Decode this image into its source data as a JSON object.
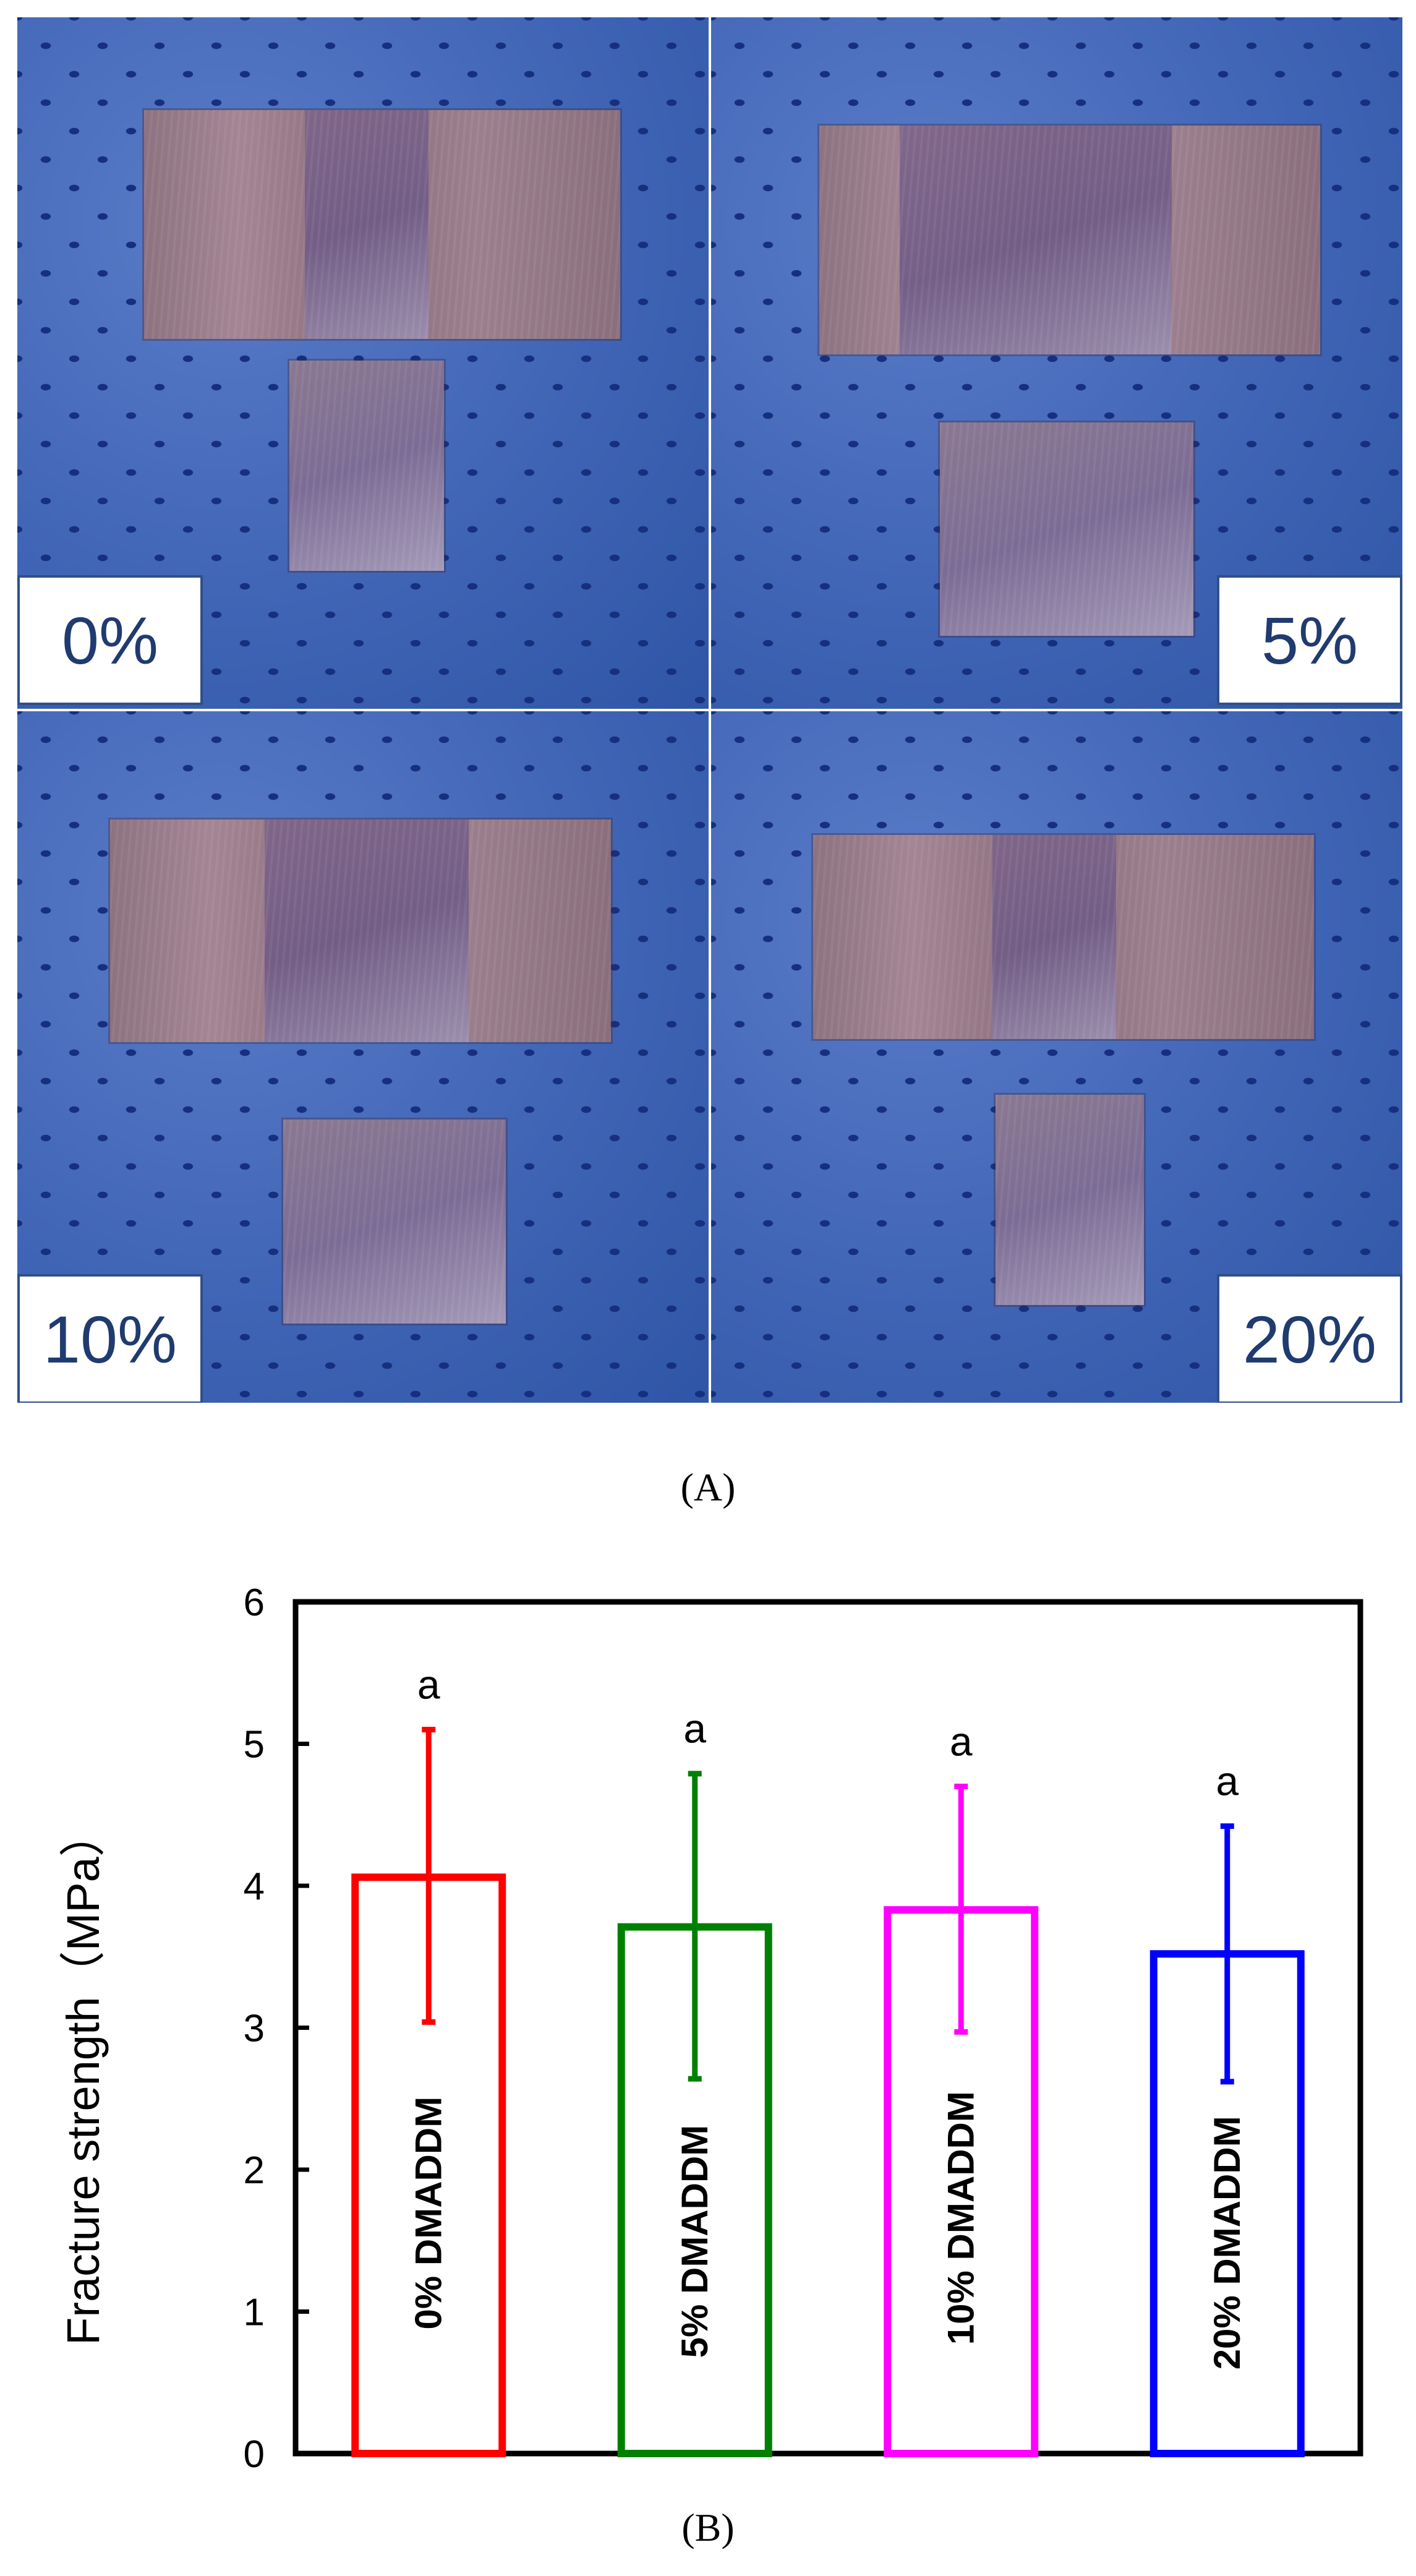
{
  "panel_a": {
    "label": "(A)",
    "panels": [
      {
        "label": "0%"
      },
      {
        "label": "5%"
      },
      {
        "label": "10%"
      },
      {
        "label": "20%"
      }
    ]
  },
  "panel_b": {
    "label": "(B)"
  },
  "chart_data": {
    "type": "bar",
    "ylabel": "Fracture strength（MPa）",
    "ylim": [
      0,
      6
    ],
    "yticks": [
      0,
      1,
      2,
      3,
      4,
      5,
      6
    ],
    "categories": [
      "0% DMADDM",
      "5% DMADDM",
      "10% DMADDM",
      "20% DMADDM"
    ],
    "values": [
      4.06,
      3.71,
      3.83,
      3.52
    ],
    "error_upper": [
      5.1,
      4.79,
      4.7,
      4.42
    ],
    "error_lower": [
      3.04,
      2.64,
      2.97,
      2.62
    ],
    "annotations": [
      "a",
      "a",
      "a",
      "a"
    ],
    "colors": [
      "#ff0000",
      "#008000",
      "#ff00ff",
      "#0000ff"
    ],
    "grid": false,
    "legend": "none"
  }
}
